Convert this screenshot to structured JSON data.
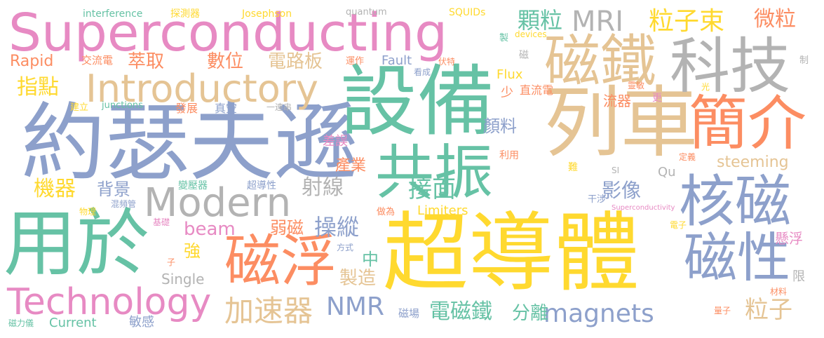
{
  "colors": {
    "pink": "#e78ac3",
    "tan": "#e5c494",
    "gray": "#b3b3b3",
    "blue": "#8da0cb",
    "green": "#66c2a5",
    "orange": "#fc8d62",
    "yellow": "#ffd92f",
    "lime": "#a6d854"
  },
  "words": [
    {
      "text": "Superconducting",
      "color": "pink"
    },
    {
      "text": "超導體",
      "color": "yellow"
    },
    {
      "text": "約瑟夫遜",
      "color": "blue"
    },
    {
      "text": "設備",
      "color": "green"
    },
    {
      "text": "列車",
      "color": "tan"
    },
    {
      "text": "用於",
      "color": "green"
    },
    {
      "text": "磁鐵",
      "color": "tan"
    },
    {
      "text": "科技",
      "color": "gray"
    },
    {
      "text": "簡介",
      "color": "orange"
    },
    {
      "text": "共振",
      "color": "green"
    },
    {
      "text": "核磁",
      "color": "blue"
    },
    {
      "text": "磁浮",
      "color": "orange"
    },
    {
      "text": "磁性",
      "color": "blue"
    },
    {
      "text": "Modern",
      "color": "gray"
    },
    {
      "text": "Introductory",
      "color": "tan"
    },
    {
      "text": "Technology",
      "color": "pink"
    },
    {
      "text": "magnets",
      "color": "blue"
    },
    {
      "text": "MRI",
      "color": "gray"
    },
    {
      "text": "粒子束",
      "color": "yellow"
    },
    {
      "text": "顆粒",
      "color": "green"
    },
    {
      "text": "微粒",
      "color": "orange"
    },
    {
      "text": "interference",
      "color": "green"
    },
    {
      "text": "探測器",
      "color": "yellow"
    },
    {
      "text": "Josephson",
      "color": "yellow"
    },
    {
      "text": "quantum",
      "color": "gray"
    },
    {
      "text": "SQUIDs",
      "color": "yellow"
    },
    {
      "text": "devices",
      "color": "yellow"
    },
    {
      "text": "Rapid",
      "color": "orange"
    },
    {
      "text": "交流電",
      "color": "orange"
    },
    {
      "text": "萃取",
      "color": "orange"
    },
    {
      "text": "數位",
      "color": "orange"
    },
    {
      "text": "電路板",
      "color": "tan"
    },
    {
      "text": "運作",
      "color": "orange"
    },
    {
      "text": "Fault",
      "color": "blue"
    },
    {
      "text": "看成",
      "color": "blue"
    },
    {
      "text": "伏特",
      "color": "orange"
    },
    {
      "text": "製",
      "color": "green"
    },
    {
      "text": "制",
      "color": "gray"
    },
    {
      "text": "指點",
      "color": "yellow"
    },
    {
      "text": "Flux",
      "color": "yellow"
    },
    {
      "text": "少",
      "color": "orange"
    },
    {
      "text": "磁",
      "color": "gray"
    },
    {
      "text": "直流電",
      "color": "orange"
    },
    {
      "text": "光",
      "color": "yellow"
    },
    {
      "text": "靈敏",
      "color": "orange"
    },
    {
      "text": "更",
      "color": "pink"
    },
    {
      "text": "流器",
      "color": "orange"
    },
    {
      "text": "junctions",
      "color": "green"
    },
    {
      "text": "建立",
      "color": "yellow"
    },
    {
      "text": "發展",
      "color": "orange"
    },
    {
      "text": "真空",
      "color": "blue"
    },
    {
      "text": "一連串",
      "color": "gray"
    },
    {
      "text": "顏料",
      "color": "blue"
    },
    {
      "text": "差誤",
      "color": "pink"
    },
    {
      "text": "產業",
      "color": "orange"
    },
    {
      "text": "利用",
      "color": "orange"
    },
    {
      "text": "難",
      "color": "yellow"
    },
    {
      "text": "定義",
      "color": "orange"
    },
    {
      "text": "steeming",
      "color": "tan"
    },
    {
      "text": "Qu",
      "color": "gray"
    },
    {
      "text": "SI",
      "color": "gray"
    },
    {
      "text": "機器",
      "color": "yellow"
    },
    {
      "text": "背景",
      "color": "blue"
    },
    {
      "text": "射線",
      "color": "gray"
    },
    {
      "text": "接面",
      "color": "green"
    },
    {
      "text": "影像",
      "color": "blue"
    },
    {
      "text": "變壓器",
      "color": "green"
    },
    {
      "text": "超導性",
      "color": "blue"
    },
    {
      "text": "物理",
      "color": "yellow"
    },
    {
      "text": "混頻管",
      "color": "blue"
    },
    {
      "text": "Limiters",
      "color": "yellow"
    },
    {
      "text": "做為",
      "color": "orange"
    },
    {
      "text": "干涉",
      "color": "blue"
    },
    {
      "text": "Superconductivity",
      "color": "pink"
    },
    {
      "text": "基礎",
      "color": "pink"
    },
    {
      "text": "beam",
      "color": "pink"
    },
    {
      "text": "弱磁",
      "color": "orange"
    },
    {
      "text": "操縱",
      "color": "blue"
    },
    {
      "text": "電子",
      "color": "yellow"
    },
    {
      "text": "懸浮",
      "color": "pink"
    },
    {
      "text": "強",
      "color": "yellow"
    },
    {
      "text": "方式",
      "color": "blue"
    },
    {
      "text": "子",
      "color": "orange"
    },
    {
      "text": "中",
      "color": "green"
    },
    {
      "text": "Single",
      "color": "gray"
    },
    {
      "text": "製造",
      "color": "tan"
    },
    {
      "text": "限",
      "color": "gray"
    },
    {
      "text": "NMR",
      "color": "blue"
    },
    {
      "text": "電磁鐵",
      "color": "green"
    },
    {
      "text": "分離",
      "color": "green"
    },
    {
      "text": "量子",
      "color": "orange"
    },
    {
      "text": "粒子",
      "color": "tan"
    },
    {
      "text": "加速器",
      "color": "tan"
    },
    {
      "text": "磁場",
      "color": "blue"
    },
    {
      "text": "材料",
      "color": "orange"
    },
    {
      "text": "磁力儀",
      "color": "green"
    },
    {
      "text": "Current",
      "color": "green"
    },
    {
      "text": "敏感",
      "color": "blue"
    }
  ]
}
